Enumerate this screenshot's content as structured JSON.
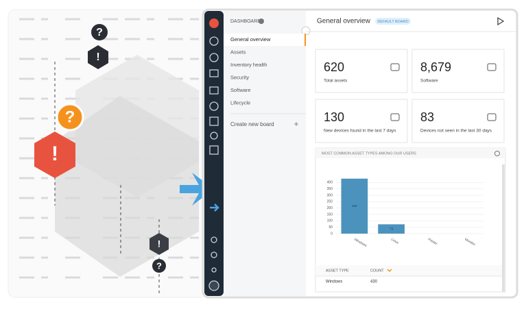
{
  "sidebar": {
    "section": "DASHBOARD",
    "items": [
      "General overview",
      "Assets",
      "Inventory health",
      "Security",
      "Software",
      "Lifecycle"
    ],
    "create": "Create new board",
    "add": "+"
  },
  "header": {
    "title": "General overview",
    "badge": "DEFAULT BOARD"
  },
  "cards": [
    {
      "value": "620",
      "label": "Total assets"
    },
    {
      "value": "8,679",
      "label": "Software"
    },
    {
      "value": "130",
      "label": "New devices found in the last 7 days"
    },
    {
      "value": "83",
      "label": "Devices not seen in the last 30 days"
    }
  ],
  "illustration": {
    "icons": [
      "?",
      "!",
      "?",
      "!",
      "!",
      "?"
    ]
  },
  "chart_data": {
    "type": "bar",
    "title": "MOST COMMON ASSET TYPES AMONG OUR USERS",
    "categories": [
      "Windows",
      "Linux",
      "Printer",
      "Monitor"
    ],
    "values": [
      430,
      73,
      0,
      0
    ],
    "color": "#4b93bd",
    "ylim": [
      0,
      450
    ],
    "yticks": [
      0,
      50,
      100,
      150,
      200,
      250,
      300,
      350,
      400
    ],
    "grid": true
  },
  "table": {
    "headers": [
      "ASSET TYPE",
      "COUNT"
    ],
    "rows": [
      [
        "Windows",
        "430"
      ]
    ]
  }
}
